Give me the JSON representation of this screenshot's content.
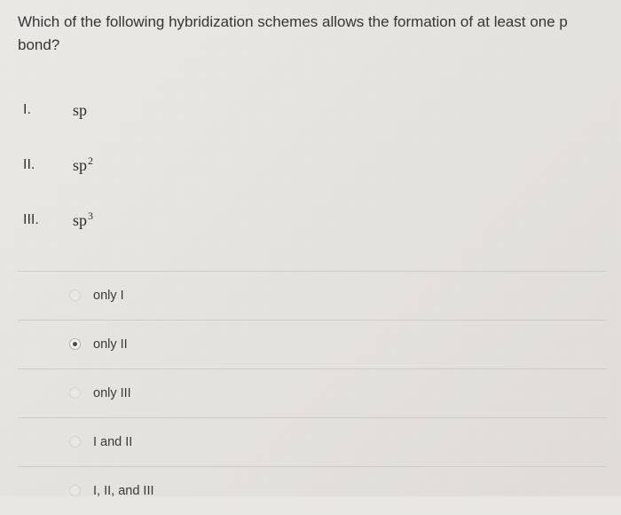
{
  "question": {
    "line1": "Which of the following hybridization schemes allows the formation of at least one p",
    "line2": "bond?"
  },
  "items": [
    {
      "roman": "I.",
      "base": "sp",
      "sup": ""
    },
    {
      "roman": "II.",
      "base": "sp",
      "sup": "2"
    },
    {
      "roman": "III.",
      "base": "sp",
      "sup": "3"
    }
  ],
  "choices": [
    {
      "label": "only I",
      "selected": false,
      "faint": true
    },
    {
      "label": "only II",
      "selected": true,
      "faint": false
    },
    {
      "label": "only III",
      "selected": false,
      "faint": true
    },
    {
      "label": "I and II",
      "selected": false,
      "faint": true
    },
    {
      "label": "I, II, and III",
      "selected": false,
      "faint": true
    }
  ]
}
